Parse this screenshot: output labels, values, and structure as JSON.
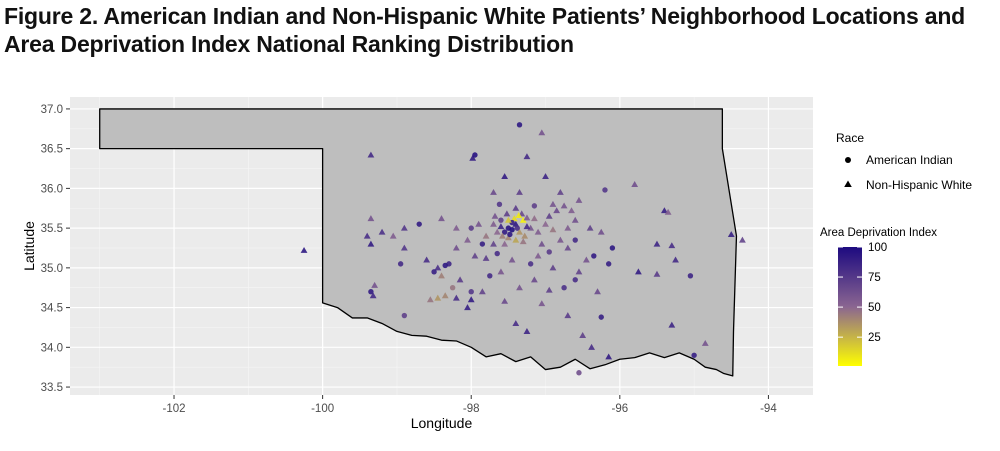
{
  "figure": {
    "title_line1": "Figure 2. American Indian and Non-Hispanic White Patients’ Neighborhood Locations and",
    "title_line2": "Area Deprivation Index National Ranking Distribution"
  },
  "chart_data": {
    "type": "scatter",
    "title": "Figure 2. American Indian and Non-Hispanic White Patients’ Neighborhood Locations and Area Deprivation Index National Ranking Distribution",
    "xlabel": "Longitude",
    "ylabel": "Latitude",
    "xlim": [
      -103.4,
      -93.4
    ],
    "ylim": [
      33.4,
      37.15
    ],
    "x_ticks": [
      -102,
      -100,
      -98,
      -96,
      -94
    ],
    "y_ticks": [
      33.5,
      34.0,
      34.5,
      35.0,
      35.5,
      36.0,
      36.5,
      37.0
    ],
    "grid": true,
    "panel_background": "#ebebeb",
    "map_fill": "#bebebe",
    "legend_race": {
      "title": "Race",
      "items": [
        {
          "label": "American Indian",
          "shape": "circle"
        },
        {
          "label": "Non-Hispanic White",
          "shape": "triangle"
        }
      ]
    },
    "legend_color": {
      "title": "Area Deprivation Index",
      "ticks": [
        25,
        50,
        75,
        100
      ],
      "min": 1,
      "max": 100,
      "color_low": "#ffff00",
      "color_mid": "#8a6591",
      "color_high": "#1d0a80",
      "placement": "right"
    },
    "oklahoma_outline": [
      [
        -103.0,
        37.0
      ],
      [
        -94.62,
        37.0
      ],
      [
        -94.62,
        36.5
      ],
      [
        -94.43,
        35.4
      ],
      [
        -94.47,
        34.2
      ],
      [
        -94.48,
        33.64
      ],
      [
        -94.6,
        33.67
      ],
      [
        -94.7,
        33.72
      ],
      [
        -94.85,
        33.75
      ],
      [
        -95.0,
        33.85
      ],
      [
        -95.2,
        33.93
      ],
      [
        -95.4,
        33.87
      ],
      [
        -95.6,
        33.93
      ],
      [
        -95.8,
        33.87
      ],
      [
        -96.0,
        33.85
      ],
      [
        -96.2,
        33.78
      ],
      [
        -96.4,
        33.73
      ],
      [
        -96.6,
        33.85
      ],
      [
        -96.8,
        33.75
      ],
      [
        -97.0,
        33.72
      ],
      [
        -97.2,
        33.88
      ],
      [
        -97.4,
        33.82
      ],
      [
        -97.6,
        33.92
      ],
      [
        -97.8,
        33.88
      ],
      [
        -98.0,
        34.0
      ],
      [
        -98.2,
        34.08
      ],
      [
        -98.4,
        34.09
      ],
      [
        -98.6,
        34.14
      ],
      [
        -98.8,
        34.15
      ],
      [
        -99.0,
        34.2
      ],
      [
        -99.2,
        34.3
      ],
      [
        -99.4,
        34.37
      ],
      [
        -99.6,
        34.37
      ],
      [
        -99.8,
        34.5
      ],
      [
        -100.0,
        34.56
      ],
      [
        -100.0,
        36.5
      ],
      [
        -103.0,
        36.5
      ]
    ],
    "points": [
      {
        "x": -97.5,
        "y": 35.5,
        "shape": "circle",
        "adi": 95
      },
      {
        "x": -97.45,
        "y": 35.48,
        "shape": "circle",
        "adi": 98
      },
      {
        "x": -97.55,
        "y": 35.45,
        "shape": "circle",
        "adi": 90
      },
      {
        "x": -97.4,
        "y": 35.55,
        "shape": "triangle",
        "adi": 92
      },
      {
        "x": -97.6,
        "y": 35.52,
        "shape": "triangle",
        "adi": 85
      },
      {
        "x": -97.35,
        "y": 35.45,
        "shape": "triangle",
        "adi": 35
      },
      {
        "x": -97.3,
        "y": 35.6,
        "shape": "triangle",
        "adi": 5
      },
      {
        "x": -97.42,
        "y": 35.62,
        "shape": "triangle",
        "adi": 12
      },
      {
        "x": -97.5,
        "y": 35.38,
        "shape": "triangle",
        "adi": 40
      },
      {
        "x": -97.65,
        "y": 35.45,
        "shape": "triangle",
        "adi": 50
      },
      {
        "x": -97.7,
        "y": 35.55,
        "shape": "triangle",
        "adi": 55
      },
      {
        "x": -97.8,
        "y": 35.4,
        "shape": "triangle",
        "adi": 45
      },
      {
        "x": -97.2,
        "y": 35.5,
        "shape": "triangle",
        "adi": 60
      },
      {
        "x": -97.1,
        "y": 35.45,
        "shape": "triangle",
        "adi": 55
      },
      {
        "x": -97.0,
        "y": 35.55,
        "shape": "triangle",
        "adi": 50
      },
      {
        "x": -96.9,
        "y": 35.48,
        "shape": "triangle",
        "adi": 45
      },
      {
        "x": -97.3,
        "y": 35.33,
        "shape": "triangle",
        "adi": 45
      },
      {
        "x": -97.55,
        "y": 35.3,
        "shape": "triangle",
        "adi": 50
      },
      {
        "x": -97.6,
        "y": 35.6,
        "shape": "circle",
        "adi": 70
      },
      {
        "x": -97.45,
        "y": 35.57,
        "shape": "circle",
        "adi": 88
      },
      {
        "x": -97.38,
        "y": 35.5,
        "shape": "circle",
        "adi": 80
      },
      {
        "x": -97.25,
        "y": 35.52,
        "shape": "triangle",
        "adi": 82
      },
      {
        "x": -97.48,
        "y": 35.42,
        "shape": "circle",
        "adi": 92
      },
      {
        "x": -97.32,
        "y": 35.68,
        "shape": "triangle",
        "adi": 65
      },
      {
        "x": -97.52,
        "y": 35.68,
        "shape": "triangle",
        "adi": 70
      },
      {
        "x": -97.68,
        "y": 35.65,
        "shape": "triangle",
        "adi": 60
      },
      {
        "x": -97.4,
        "y": 35.75,
        "shape": "triangle",
        "adi": 72
      },
      {
        "x": -97.25,
        "y": 35.63,
        "shape": "triangle",
        "adi": 55
      },
      {
        "x": -97.15,
        "y": 35.62,
        "shape": "triangle",
        "adi": 48
      },
      {
        "x": -96.95,
        "y": 35.65,
        "shape": "triangle",
        "adi": 70
      },
      {
        "x": -96.85,
        "y": 35.72,
        "shape": "triangle",
        "adi": 65
      },
      {
        "x": -96.75,
        "y": 35.78,
        "shape": "triangle",
        "adi": 60
      },
      {
        "x": -96.7,
        "y": 35.5,
        "shape": "triangle",
        "adi": 55
      },
      {
        "x": -96.8,
        "y": 35.35,
        "shape": "triangle",
        "adi": 58
      },
      {
        "x": -97.05,
        "y": 35.3,
        "shape": "triangle",
        "adi": 62
      },
      {
        "x": -97.7,
        "y": 35.3,
        "shape": "triangle",
        "adi": 68
      },
      {
        "x": -97.9,
        "y": 35.55,
        "shape": "triangle",
        "adi": 60
      },
      {
        "x": -98.0,
        "y": 35.5,
        "shape": "circle",
        "adi": 72
      },
      {
        "x": -97.62,
        "y": 35.8,
        "shape": "circle",
        "adi": 75
      },
      {
        "x": -97.35,
        "y": 36.8,
        "shape": "circle",
        "adi": 92
      },
      {
        "x": -97.05,
        "y": 36.7,
        "shape": "triangle",
        "adi": 60
      },
      {
        "x": -97.0,
        "y": 36.15,
        "shape": "triangle",
        "adi": 85
      },
      {
        "x": -97.25,
        "y": 36.4,
        "shape": "triangle",
        "adi": 82
      },
      {
        "x": -97.98,
        "y": 36.38,
        "shape": "triangle",
        "adi": 90
      },
      {
        "x": -97.95,
        "y": 36.42,
        "shape": "circle",
        "adi": 95
      },
      {
        "x": -99.35,
        "y": 36.42,
        "shape": "triangle",
        "adi": 82
      },
      {
        "x": -97.35,
        "y": 35.95,
        "shape": "triangle",
        "adi": 70
      },
      {
        "x": -97.7,
        "y": 35.95,
        "shape": "triangle",
        "adi": 65
      },
      {
        "x": -96.8,
        "y": 35.95,
        "shape": "triangle",
        "adi": 68
      },
      {
        "x": -96.55,
        "y": 35.85,
        "shape": "triangle",
        "adi": 60
      },
      {
        "x": -96.65,
        "y": 35.72,
        "shape": "triangle",
        "adi": 55
      },
      {
        "x": -96.6,
        "y": 35.6,
        "shape": "triangle",
        "adi": 62
      },
      {
        "x": -96.4,
        "y": 35.5,
        "shape": "triangle",
        "adi": 70
      },
      {
        "x": -96.2,
        "y": 35.98,
        "shape": "circle",
        "adi": 75
      },
      {
        "x": -95.8,
        "y": 36.05,
        "shape": "triangle",
        "adi": 62
      },
      {
        "x": -95.4,
        "y": 35.72,
        "shape": "triangle",
        "adi": 88
      },
      {
        "x": -95.35,
        "y": 35.7,
        "shape": "triangle",
        "adi": 55
      },
      {
        "x": -95.5,
        "y": 35.3,
        "shape": "triangle",
        "adi": 85
      },
      {
        "x": -95.3,
        "y": 35.28,
        "shape": "triangle",
        "adi": 80
      },
      {
        "x": -95.25,
        "y": 35.1,
        "shape": "triangle",
        "adi": 82
      },
      {
        "x": -95.5,
        "y": 34.92,
        "shape": "triangle",
        "adi": 72
      },
      {
        "x": -95.05,
        "y": 34.9,
        "shape": "circle",
        "adi": 85
      },
      {
        "x": -95.75,
        "y": 34.95,
        "shape": "triangle",
        "adi": 90
      },
      {
        "x": -96.1,
        "y": 35.25,
        "shape": "circle",
        "adi": 92
      },
      {
        "x": -96.15,
        "y": 35.05,
        "shape": "circle",
        "adi": 88
      },
      {
        "x": -96.35,
        "y": 35.15,
        "shape": "circle",
        "adi": 90
      },
      {
        "x": -96.45,
        "y": 35.1,
        "shape": "triangle",
        "adi": 60
      },
      {
        "x": -96.7,
        "y": 35.25,
        "shape": "triangle",
        "adi": 65
      },
      {
        "x": -96.9,
        "y": 35.0,
        "shape": "triangle",
        "adi": 70
      },
      {
        "x": -96.6,
        "y": 34.85,
        "shape": "circle",
        "adi": 80
      },
      {
        "x": -96.75,
        "y": 34.75,
        "shape": "circle",
        "adi": 78
      },
      {
        "x": -96.95,
        "y": 34.72,
        "shape": "triangle",
        "adi": 70
      },
      {
        "x": -97.15,
        "y": 34.85,
        "shape": "triangle",
        "adi": 65
      },
      {
        "x": -97.05,
        "y": 34.55,
        "shape": "triangle",
        "adi": 58
      },
      {
        "x": -96.7,
        "y": 34.4,
        "shape": "triangle",
        "adi": 72
      },
      {
        "x": -96.5,
        "y": 34.15,
        "shape": "triangle",
        "adi": 70
      },
      {
        "x": -96.38,
        "y": 34.0,
        "shape": "triangle",
        "adi": 80
      },
      {
        "x": -96.25,
        "y": 34.38,
        "shape": "circle",
        "adi": 88
      },
      {
        "x": -96.15,
        "y": 33.88,
        "shape": "triangle",
        "adi": 90
      },
      {
        "x": -96.55,
        "y": 33.68,
        "shape": "circle",
        "adi": 62
      },
      {
        "x": -97.25,
        "y": 34.2,
        "shape": "triangle",
        "adi": 85
      },
      {
        "x": -97.4,
        "y": 34.3,
        "shape": "triangle",
        "adi": 80
      },
      {
        "x": -97.55,
        "y": 34.58,
        "shape": "triangle",
        "adi": 65
      },
      {
        "x": -97.35,
        "y": 34.75,
        "shape": "triangle",
        "adi": 60
      },
      {
        "x": -97.6,
        "y": 34.95,
        "shape": "triangle",
        "adi": 58
      },
      {
        "x": -97.8,
        "y": 35.12,
        "shape": "triangle",
        "adi": 72
      },
      {
        "x": -97.95,
        "y": 35.15,
        "shape": "triangle",
        "adi": 68
      },
      {
        "x": -97.75,
        "y": 34.9,
        "shape": "circle",
        "adi": 82
      },
      {
        "x": -98.0,
        "y": 34.6,
        "shape": "triangle",
        "adi": 90
      },
      {
        "x": -98.05,
        "y": 34.5,
        "shape": "triangle",
        "adi": 88
      },
      {
        "x": -98.2,
        "y": 34.62,
        "shape": "triangle",
        "adi": 80
      },
      {
        "x": -98.35,
        "y": 34.65,
        "shape": "triangle",
        "adi": 40
      },
      {
        "x": -98.45,
        "y": 34.62,
        "shape": "triangle",
        "adi": 35
      },
      {
        "x": -98.55,
        "y": 34.6,
        "shape": "triangle",
        "adi": 45
      },
      {
        "x": -98.25,
        "y": 34.75,
        "shape": "circle",
        "adi": 45
      },
      {
        "x": -98.4,
        "y": 34.9,
        "shape": "triangle",
        "adi": 42
      },
      {
        "x": -98.3,
        "y": 35.05,
        "shape": "circle",
        "adi": 85
      },
      {
        "x": -98.35,
        "y": 35.03,
        "shape": "circle",
        "adi": 92
      },
      {
        "x": -98.45,
        "y": 35.0,
        "shape": "triangle",
        "adi": 78
      },
      {
        "x": -98.2,
        "y": 35.25,
        "shape": "triangle",
        "adi": 62
      },
      {
        "x": -98.05,
        "y": 35.35,
        "shape": "triangle",
        "adi": 55
      },
      {
        "x": -97.85,
        "y": 35.3,
        "shape": "circle",
        "adi": 88
      },
      {
        "x": -98.7,
        "y": 35.55,
        "shape": "circle",
        "adi": 90
      },
      {
        "x": -98.9,
        "y": 35.5,
        "shape": "triangle",
        "adi": 75
      },
      {
        "x": -99.05,
        "y": 35.4,
        "shape": "triangle",
        "adi": 55
      },
      {
        "x": -99.2,
        "y": 35.45,
        "shape": "triangle",
        "adi": 78
      },
      {
        "x": -99.35,
        "y": 35.62,
        "shape": "triangle",
        "adi": 60
      },
      {
        "x": -99.4,
        "y": 35.4,
        "shape": "triangle",
        "adi": 80
      },
      {
        "x": -99.35,
        "y": 35.3,
        "shape": "triangle",
        "adi": 90
      },
      {
        "x": -98.95,
        "y": 35.05,
        "shape": "circle",
        "adi": 82
      },
      {
        "x": -98.9,
        "y": 35.25,
        "shape": "triangle",
        "adi": 75
      },
      {
        "x": -98.6,
        "y": 35.1,
        "shape": "triangle",
        "adi": 80
      },
      {
        "x": -98.5,
        "y": 34.95,
        "shape": "circle",
        "adi": 88
      },
      {
        "x": -98.4,
        "y": 35.62,
        "shape": "triangle",
        "adi": 60
      },
      {
        "x": -98.2,
        "y": 35.5,
        "shape": "triangle",
        "adi": 55
      },
      {
        "x": -100.25,
        "y": 35.22,
        "shape": "triangle",
        "adi": 92
      },
      {
        "x": -99.3,
        "y": 34.78,
        "shape": "triangle",
        "adi": 60
      },
      {
        "x": -99.35,
        "y": 34.7,
        "shape": "circle",
        "adi": 90
      },
      {
        "x": -99.32,
        "y": 34.65,
        "shape": "triangle",
        "adi": 82
      },
      {
        "x": -98.9,
        "y": 34.4,
        "shape": "circle",
        "adi": 70
      },
      {
        "x": -98.0,
        "y": 34.7,
        "shape": "circle",
        "adi": 75
      },
      {
        "x": -98.15,
        "y": 34.85,
        "shape": "triangle",
        "adi": 72
      },
      {
        "x": -97.85,
        "y": 34.7,
        "shape": "triangle",
        "adi": 68
      },
      {
        "x": -94.5,
        "y": 35.42,
        "shape": "triangle",
        "adi": 88
      },
      {
        "x": -94.35,
        "y": 35.35,
        "shape": "triangle",
        "adi": 68
      },
      {
        "x": -95.0,
        "y": 33.9,
        "shape": "circle",
        "adi": 88
      },
      {
        "x": -94.85,
        "y": 34.05,
        "shape": "triangle",
        "adi": 60
      },
      {
        "x": -95.3,
        "y": 34.28,
        "shape": "triangle",
        "adi": 85
      },
      {
        "x": -96.25,
        "y": 35.45,
        "shape": "triangle",
        "adi": 62
      },
      {
        "x": -97.15,
        "y": 35.78,
        "shape": "circle",
        "adi": 70
      },
      {
        "x": -96.9,
        "y": 35.8,
        "shape": "triangle",
        "adi": 60
      },
      {
        "x": -97.55,
        "y": 36.15,
        "shape": "triangle",
        "adi": 90
      },
      {
        "x": -97.1,
        "y": 35.15,
        "shape": "triangle",
        "adi": 55
      },
      {
        "x": -97.2,
        "y": 35.05,
        "shape": "circle",
        "adi": 78
      },
      {
        "x": -96.95,
        "y": 35.2,
        "shape": "circle",
        "adi": 72
      },
      {
        "x": -97.45,
        "y": 35.1,
        "shape": "triangle",
        "adi": 60
      },
      {
        "x": -97.65,
        "y": 35.18,
        "shape": "circle",
        "adi": 80
      },
      {
        "x": -96.3,
        "y": 34.7,
        "shape": "triangle",
        "adi": 65
      },
      {
        "x": -96.6,
        "y": 35.35,
        "shape": "circle",
        "adi": 82
      },
      {
        "x": -96.55,
        "y": 34.95,
        "shape": "triangle",
        "adi": 68
      },
      {
        "x": -97.4,
        "y": 35.35,
        "shape": "triangle",
        "adi": 30
      },
      {
        "x": -97.28,
        "y": 35.4,
        "shape": "triangle",
        "adi": 38
      },
      {
        "x": -97.58,
        "y": 35.4,
        "shape": "triangle",
        "adi": 42
      },
      {
        "x": -97.5,
        "y": 35.6,
        "shape": "triangle",
        "adi": 20
      },
      {
        "x": -97.36,
        "y": 35.66,
        "shape": "triangle",
        "adi": 8
      }
    ]
  }
}
